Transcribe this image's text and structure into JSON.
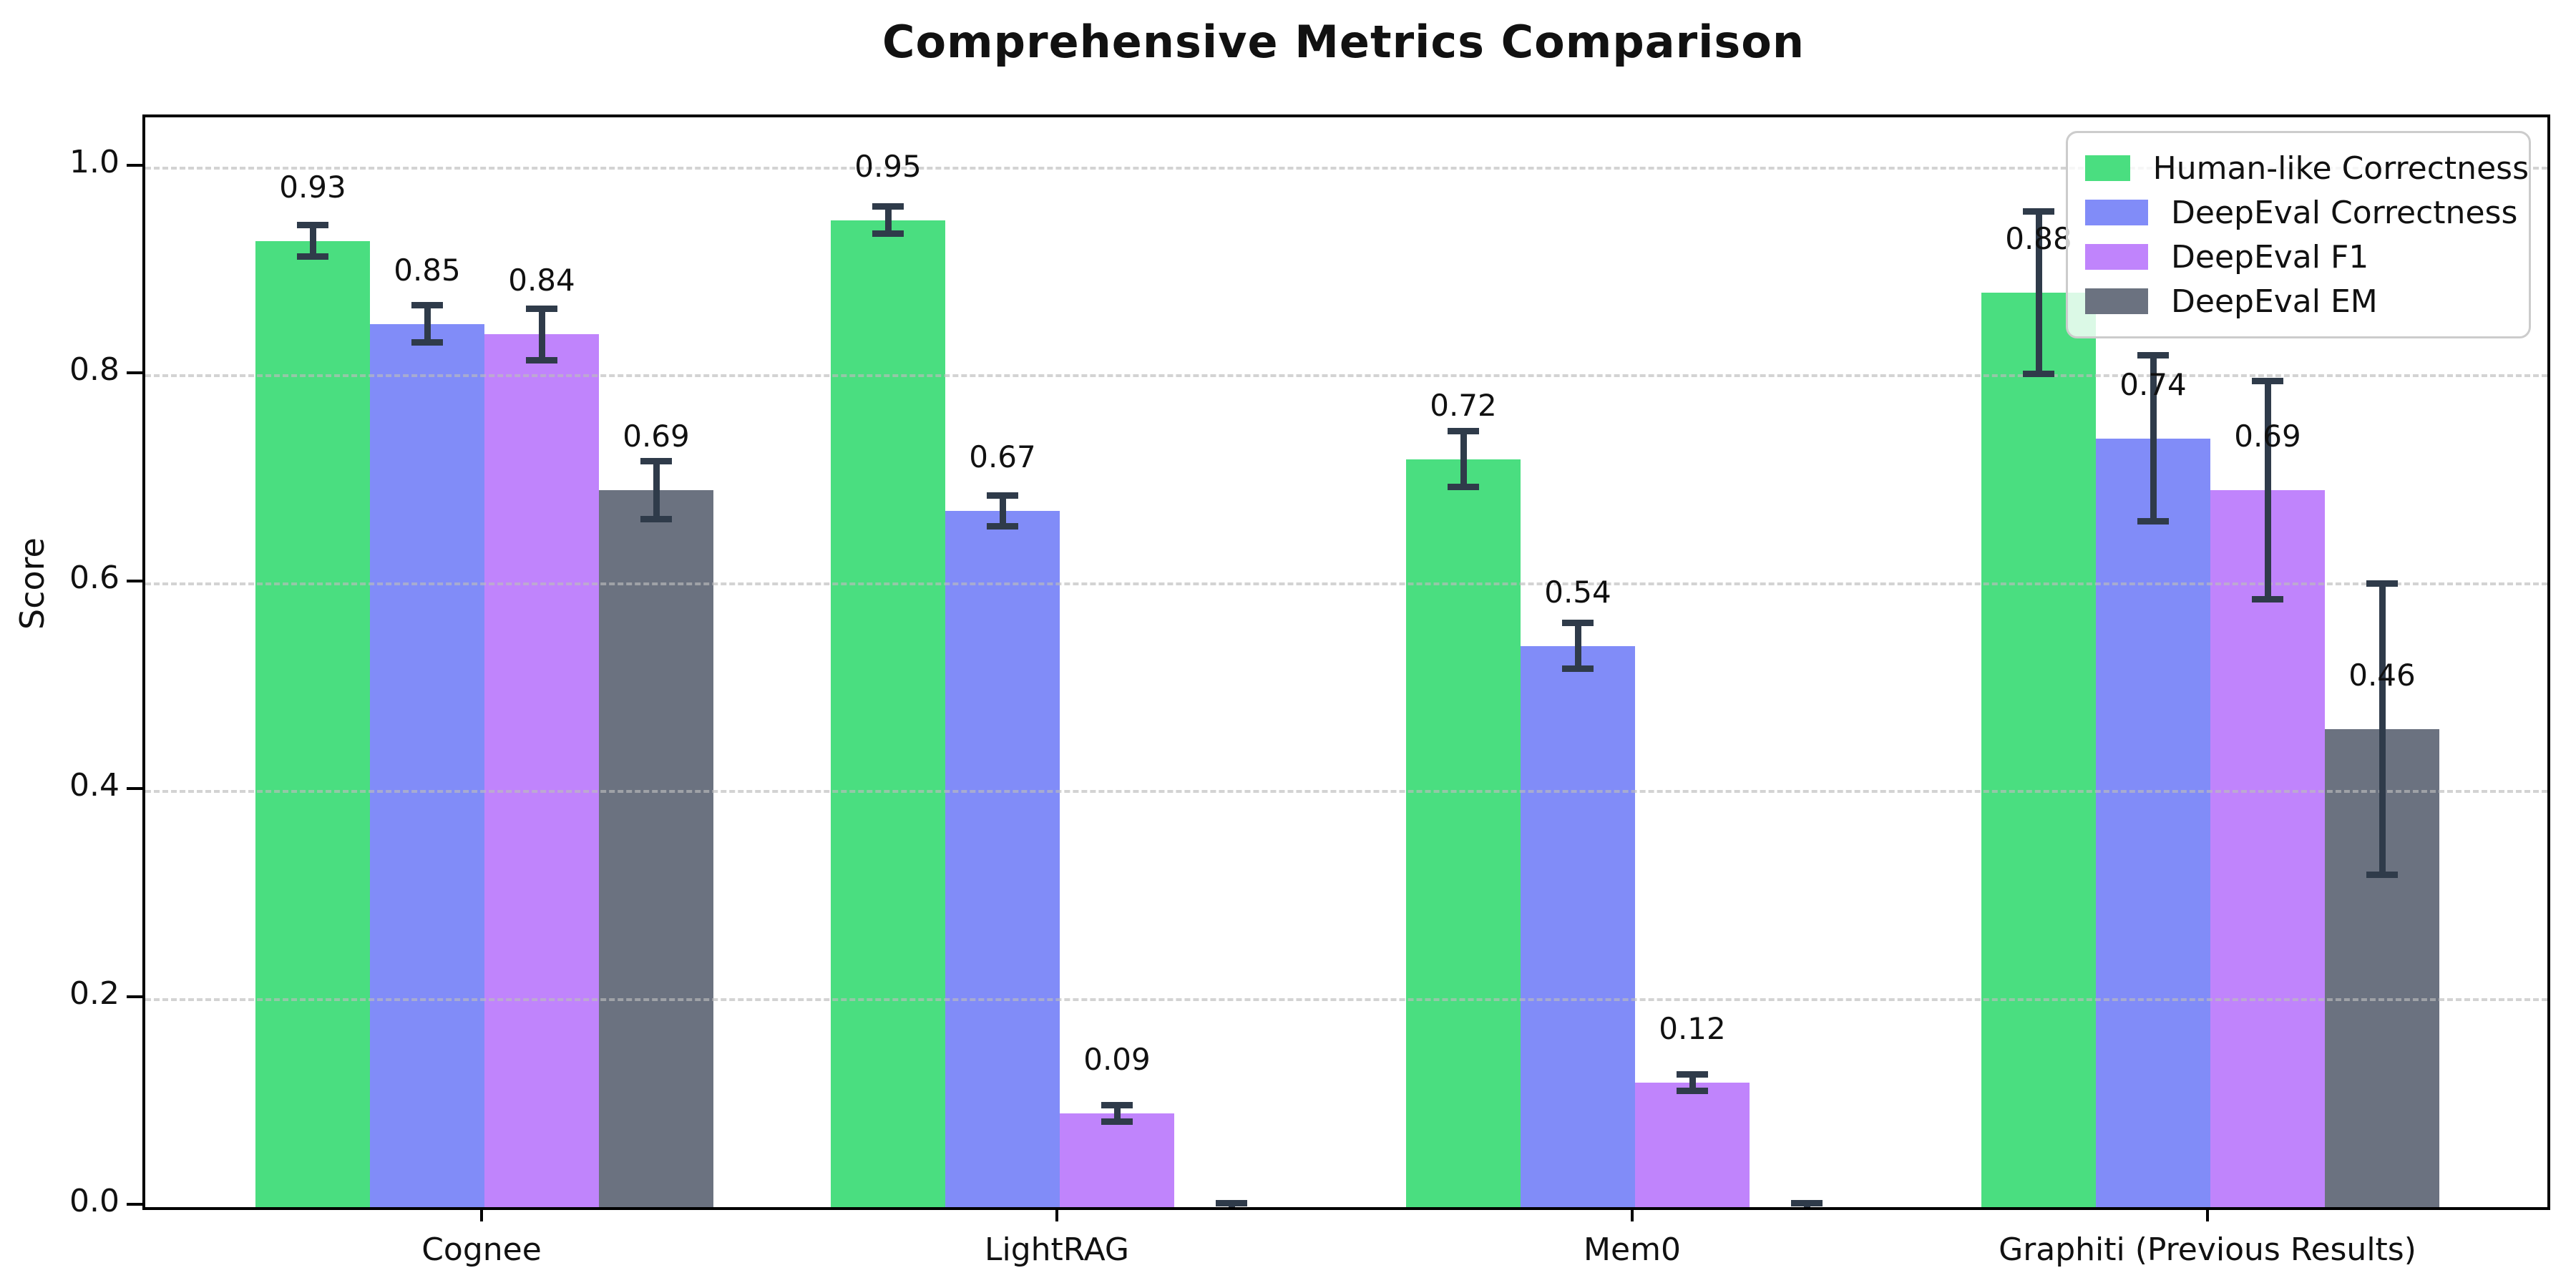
{
  "chart_data": {
    "type": "bar",
    "title": "Comprehensive Metrics Comparison",
    "xlabel": "",
    "ylabel": "Score",
    "categories": [
      "Cognee",
      "LightRAG",
      "Mem0",
      "Graphiti (Previous Results)"
    ],
    "series": [
      {
        "name": "Human-like Correctness",
        "color": "#4ade80",
        "values": [
          0.93,
          0.95,
          0.72,
          0.88
        ],
        "errors": [
          0.015,
          0.013,
          0.027,
          0.078
        ],
        "bar_labels": [
          "0.93",
          "0.95",
          "0.72",
          "0.88"
        ]
      },
      {
        "name": "DeepEval Correctness",
        "color": "#818cf8",
        "values": [
          0.85,
          0.67,
          0.54,
          0.74
        ],
        "errors": [
          0.018,
          0.015,
          0.022,
          0.08
        ],
        "bar_labels": [
          "0.85",
          "0.67",
          "0.54",
          "0.74"
        ]
      },
      {
        "name": "DeepEval F1",
        "color": "#c084fc",
        "values": [
          0.84,
          0.09,
          0.12,
          0.69
        ],
        "errors": [
          0.025,
          0.008,
          0.008,
          0.105
        ],
        "bar_labels": [
          "0.84",
          "0.09",
          "0.12",
          "0.69"
        ]
      },
      {
        "name": "DeepEval EM",
        "color": "#6b7280",
        "values": [
          0.69,
          0.0,
          0.0,
          0.46
        ],
        "errors": [
          0.028,
          0.004,
          0.004,
          0.14
        ],
        "bar_labels": [
          "0.69",
          null,
          null,
          "0.46"
        ]
      }
    ],
    "ylim": [
      0.0,
      1.05
    ],
    "yticks": [
      0.0,
      0.2,
      0.4,
      0.6,
      0.8,
      1.0
    ],
    "ytick_labels": [
      "0.0",
      "0.2",
      "0.4",
      "0.6",
      "0.8",
      "1.0"
    ],
    "grid": "horizontal-dashed",
    "grid_color": "#bbbbbb",
    "error_bar_color": "#2f3b4a",
    "legend_position": "upper-right",
    "legend_entries": [
      "Human-like Correctness",
      "DeepEval Correctness",
      "DeepEval F1",
      "DeepEval EM"
    ]
  }
}
